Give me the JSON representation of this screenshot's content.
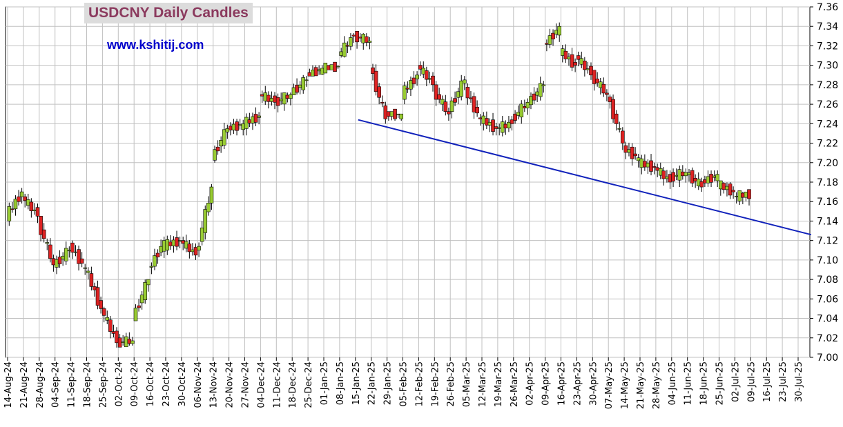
{
  "chart_data": {
    "type": "candlestick",
    "title": "USDCNY Daily Candles",
    "watermark": "www.kshitij.com",
    "ylim": [
      7.0,
      7.36
    ],
    "y_ticks": [
      7.0,
      7.02,
      7.04,
      7.06,
      7.08,
      7.1,
      7.12,
      7.14,
      7.16,
      7.18,
      7.2,
      7.22,
      7.24,
      7.26,
      7.28,
      7.3,
      7.32,
      7.34,
      7.36
    ],
    "y_tick_labels": [
      "7.00",
      "7.02",
      "7.04",
      "7.06",
      "7.08",
      "7.10",
      "7.12",
      "7.14",
      "7.16",
      "7.18",
      "7.20",
      "7.22",
      "7.24",
      "7.26",
      "7.28",
      "7.30",
      "7.32",
      "7.34",
      "7.36"
    ],
    "x_tick_labels": [
      "14-Aug-24",
      "21-Aug-24",
      "28-Aug-24",
      "04-Sep-24",
      "11-Sep-24",
      "18-Sep-24",
      "25-Sep-24",
      "02-Oct-24",
      "09-Oct-24",
      "16-Oct-24",
      "23-Oct-24",
      "30-Oct-24",
      "06-Nov-24",
      "13-Nov-24",
      "20-Nov-24",
      "27-Nov-24",
      "04-Dec-24",
      "11-Dec-24",
      "18-Dec-24",
      "25-Dec-24",
      "01-Jan-25",
      "08-Jan-25",
      "15-Jan-25",
      "22-Jan-25",
      "29-Jan-25",
      "05-Feb-25",
      "12-Feb-25",
      "19-Feb-25",
      "26-Feb-25",
      "05-Mar-25",
      "12-Mar-25",
      "19-Mar-25",
      "26-Mar-25",
      "02-Apr-25",
      "09-Apr-25",
      "16-Apr-25",
      "23-Apr-25",
      "30-Apr-25",
      "07-May-25",
      "14-May-25",
      "21-May-25",
      "28-May-25",
      "04-Jun-25",
      "11-Jun-25",
      "18-Jun-25",
      "25-Jun-25",
      "02-Jul-25",
      "09-Jul-25",
      "16-Jul-25",
      "23-Jul-25",
      "30-Jul-25"
    ],
    "up_color": "#99cc33",
    "down_color": "#dd2222",
    "trendline": {
      "color": "#1122bb",
      "start": {
        "x": "15-Jan-25",
        "y": 7.244
      },
      "end": {
        "x": "04-Aug-25",
        "y": 7.126
      }
    },
    "grid": true,
    "weekly_approx_ohlc": [
      {
        "week": "14-Aug-24",
        "o": 7.145,
        "h": 7.178,
        "l": 7.135,
        "c": 7.17
      },
      {
        "week": "21-Aug-24",
        "o": 7.165,
        "h": 7.168,
        "l": 7.125,
        "c": 7.145
      },
      {
        "week": "28-Aug-24",
        "o": 7.14,
        "h": 7.145,
        "l": 7.088,
        "c": 7.095
      },
      {
        "week": "04-Sep-24",
        "o": 7.095,
        "h": 7.122,
        "l": 7.085,
        "c": 7.11
      },
      {
        "week": "11-Sep-24",
        "o": 7.115,
        "h": 7.12,
        "l": 7.08,
        "c": 7.092
      },
      {
        "week": "18-Sep-24",
        "o": 7.092,
        "h": 7.11,
        "l": 7.045,
        "c": 7.05
      },
      {
        "week": "25-Sep-24",
        "o": 7.05,
        "h": 7.052,
        "l": 7.01,
        "c": 7.015
      },
      {
        "week": "02-Oct-24",
        "o": 7.015,
        "h": 7.03,
        "l": 7.012,
        "c": 7.017
      },
      {
        "week": "09-Oct-24",
        "o": 7.04,
        "h": 7.08,
        "l": 7.038,
        "c": 7.08
      },
      {
        "week": "16-Oct-24",
        "o": 7.09,
        "h": 7.125,
        "l": 7.085,
        "c": 7.12
      },
      {
        "week": "23-Oct-24",
        "o": 7.115,
        "h": 7.132,
        "l": 7.105,
        "c": 7.12
      },
      {
        "week": "30-Oct-24",
        "o": 7.12,
        "h": 7.14,
        "l": 7.1,
        "c": 7.105
      },
      {
        "week": "06-Nov-24",
        "o": 7.105,
        "h": 7.178,
        "l": 7.1,
        "c": 7.175
      },
      {
        "week": "13-Nov-24",
        "o": 7.205,
        "h": 7.245,
        "l": 7.2,
        "c": 7.235
      },
      {
        "week": "20-Nov-24",
        "o": 7.235,
        "h": 7.245,
        "l": 7.228,
        "c": 7.24
      },
      {
        "week": "27-Nov-24",
        "o": 7.24,
        "h": 7.262,
        "l": 7.225,
        "c": 7.248
      },
      {
        "week": "04-Dec-24",
        "o": 7.27,
        "h": 7.29,
        "l": 7.255,
        "c": 7.262
      },
      {
        "week": "11-Dec-24",
        "o": 7.262,
        "h": 7.272,
        "l": 7.24,
        "c": 7.27
      },
      {
        "week": "18-Dec-24",
        "o": 7.272,
        "h": 7.29,
        "l": 7.27,
        "c": 7.285
      },
      {
        "week": "25-Dec-24",
        "o": 7.29,
        "h": 7.3,
        "l": 7.29,
        "c": 7.297
      },
      {
        "week": "01-Jan-25",
        "o": 7.297,
        "h": 7.3,
        "l": 7.296,
        "c": 7.299
      },
      {
        "week": "08-Jan-25",
        "o": 7.31,
        "h": 7.333,
        "l": 7.308,
        "c": 7.33
      },
      {
        "week": "15-Jan-25",
        "o": 7.33,
        "h": 7.333,
        "l": 7.3,
        "c": 7.325
      },
      {
        "week": "22-Jan-25",
        "o": 7.3,
        "h": 7.305,
        "l": 7.24,
        "c": 7.245
      },
      {
        "week": "29-Jan-25",
        "o": 7.25,
        "h": 7.25,
        "l": 7.243,
        "c": 7.25
      },
      {
        "week": "05-Feb-25",
        "o": 7.27,
        "h": 7.3,
        "l": 7.26,
        "c": 7.29
      },
      {
        "week": "12-Feb-25",
        "o": 7.3,
        "h": 7.31,
        "l": 7.27,
        "c": 7.28
      },
      {
        "week": "19-Feb-25",
        "o": 7.275,
        "h": 7.285,
        "l": 7.235,
        "c": 7.25
      },
      {
        "week": "26-Feb-25",
        "o": 7.255,
        "h": 7.29,
        "l": 7.245,
        "c": 7.285
      },
      {
        "week": "05-Mar-25",
        "o": 7.275,
        "h": 7.285,
        "l": 7.23,
        "c": 7.245
      },
      {
        "week": "12-Mar-25",
        "o": 7.245,
        "h": 7.26,
        "l": 7.215,
        "c": 7.235
      },
      {
        "week": "19-Mar-25",
        "o": 7.235,
        "h": 7.248,
        "l": 7.225,
        "c": 7.24
      },
      {
        "week": "26-Mar-25",
        "o": 7.245,
        "h": 7.268,
        "l": 7.24,
        "c": 7.262
      },
      {
        "week": "02-Apr-25",
        "o": 7.262,
        "h": 7.32,
        "l": 7.255,
        "c": 7.28
      },
      {
        "week": "09-Apr-25",
        "o": 7.32,
        "h": 7.35,
        "l": 7.29,
        "c": 7.34
      },
      {
        "week": "16-Apr-25",
        "o": 7.315,
        "h": 7.325,
        "l": 7.29,
        "c": 7.3
      },
      {
        "week": "23-Apr-25",
        "o": 7.31,
        "h": 7.315,
        "l": 7.285,
        "c": 7.29
      },
      {
        "week": "30-Apr-25",
        "o": 7.29,
        "h": 7.295,
        "l": 7.26,
        "c": 7.27
      },
      {
        "week": "07-May-25",
        "o": 7.27,
        "h": 7.27,
        "l": 7.21,
        "c": 7.22
      },
      {
        "week": "14-May-25",
        "o": 7.215,
        "h": 7.225,
        "l": 7.185,
        "c": 7.205
      },
      {
        "week": "21-May-25",
        "o": 7.2,
        "h": 7.225,
        "l": 7.18,
        "c": 7.195
      },
      {
        "week": "28-May-25",
        "o": 7.195,
        "h": 7.2,
        "l": 7.168,
        "c": 7.18
      },
      {
        "week": "04-Jun-25",
        "o": 7.185,
        "h": 7.2,
        "l": 7.175,
        "c": 7.19
      },
      {
        "week": "11-Jun-25",
        "o": 7.19,
        "h": 7.195,
        "l": 7.17,
        "c": 7.175
      },
      {
        "week": "18-Jun-25",
        "o": 7.18,
        "h": 7.192,
        "l": 7.175,
        "c": 7.188
      },
      {
        "week": "25-Jun-25",
        "o": 7.178,
        "h": 7.18,
        "l": 7.16,
        "c": 7.17
      },
      {
        "week": "02-Jul-25",
        "o": 7.165,
        "h": 7.17,
        "l": 7.155,
        "c": 7.168
      }
    ]
  }
}
